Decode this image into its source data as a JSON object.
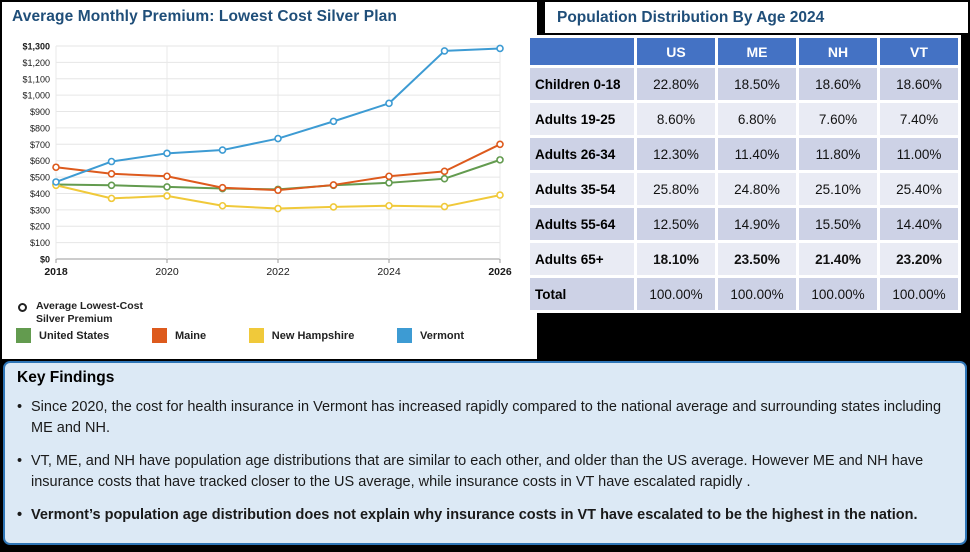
{
  "colors": {
    "page_background": "#000000",
    "title_blue": "#1f4e79",
    "table_header_blue": "#4472c4",
    "row_stripe_dark": "#cdd2e6",
    "row_stripe_light": "#e9ebf4",
    "findings_background": "#dce9f5",
    "findings_border": "#2e75b6"
  },
  "chart_data": [
    {
      "type": "line",
      "title": "Average Monthly Premium: Lowest Cost Silver Plan",
      "x": [
        2018,
        2019,
        2020,
        2021,
        2022,
        2023,
        2024,
        2025,
        2026
      ],
      "xticks": [
        2018,
        2020,
        2022,
        2024,
        2026
      ],
      "ylim": [
        0,
        1300
      ],
      "ytick_step": 100,
      "ytick_prefix": "$",
      "grid": true,
      "legend_position": "bottom",
      "marker_legend": "Average Lowest-Cost Silver Premium",
      "series": [
        {
          "name": "United States",
          "color": "#639b4f",
          "values": [
            455,
            450,
            440,
            430,
            425,
            450,
            465,
            490,
            605
          ]
        },
        {
          "name": "Maine",
          "color": "#dd5a1d",
          "values": [
            560,
            520,
            505,
            435,
            420,
            452,
            505,
            535,
            700
          ]
        },
        {
          "name": "New Hampshire",
          "color": "#f0c93a",
          "values": [
            450,
            370,
            385,
            325,
            308,
            318,
            325,
            320,
            390
          ]
        },
        {
          "name": "Vermont",
          "color": "#3d9bd3",
          "values": [
            470,
            595,
            645,
            665,
            735,
            840,
            950,
            1270,
            1285
          ]
        }
      ]
    },
    {
      "type": "table",
      "title": "Population Distribution By Age 2024",
      "columns": [
        "",
        "US",
        "ME",
        "NH",
        "VT"
      ],
      "rows": [
        {
          "label": "Children 0-18",
          "values": [
            "22.80%",
            "18.50%",
            "18.60%",
            "18.60%"
          ],
          "bold": false
        },
        {
          "label": "Adults 19-25",
          "values": [
            "8.60%",
            "6.80%",
            "7.60%",
            "7.40%"
          ],
          "bold": false
        },
        {
          "label": "Adults 26-34",
          "values": [
            "12.30%",
            "11.40%",
            "11.80%",
            "11.00%"
          ],
          "bold": false
        },
        {
          "label": "Adults 35-54",
          "values": [
            "25.80%",
            "24.80%",
            "25.10%",
            "25.40%"
          ],
          "bold": false
        },
        {
          "label": "Adults 55-64",
          "values": [
            "12.50%",
            "14.90%",
            "15.50%",
            "14.40%"
          ],
          "bold": false
        },
        {
          "label": "Adults 65+",
          "values": [
            "18.10%",
            "23.50%",
            "21.40%",
            "23.20%"
          ],
          "bold": true
        },
        {
          "label": "Total",
          "values": [
            "100.00%",
            "100.00%",
            "100.00%",
            "100.00%"
          ],
          "bold": false
        }
      ]
    }
  ],
  "key_findings": {
    "title": "Key Findings",
    "bullets": [
      {
        "text": "Since 2020, the cost for health insurance in Vermont has increased rapidly compared to the national average and surrounding states including ME and NH.",
        "bold": false
      },
      {
        "text": "VT, ME, and NH have population age distributions that are similar to each other, and older than the US average. However ME and NH have insurance costs that have tracked closer to the US average, while insurance costs in VT have escalated rapidly .",
        "bold": false
      },
      {
        "text": "Vermont’s population age distribution does not explain why insurance costs in VT have escalated to be the highest in the nation.",
        "bold": true
      }
    ]
  }
}
